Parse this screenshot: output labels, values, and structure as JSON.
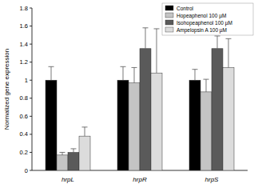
{
  "chart_data": {
    "type": "bar",
    "y_label": "Normalized gene expression",
    "categories": [
      "hrpL",
      "hrpR",
      "hrpS"
    ],
    "series": [
      {
        "name": "Control",
        "color": "#000000",
        "values": [
          1.0,
          1.0,
          1.0
        ],
        "errors": [
          0.15,
          0.15,
          0.12
        ]
      },
      {
        "name": "Hopeaphenol 100 µM",
        "color": "#c4c4c4",
        "values": [
          0.17,
          0.97,
          0.87
        ],
        "errors": [
          0.03,
          0.17,
          0.14
        ]
      },
      {
        "name": "Isohopeaphenol 100 µM",
        "color": "#5a5a5a",
        "values": [
          0.2,
          1.35,
          1.35
        ],
        "errors": [
          0.04,
          0.23,
          0.14
        ]
      },
      {
        "name": "Ampelopsin A 100 µM",
        "color": "#dcdcdc",
        "values": [
          0.38,
          1.08,
          1.14
        ],
        "errors": [
          0.1,
          0.49,
          0.32
        ]
      }
    ],
    "ylim": [
      0,
      1.8
    ],
    "yticks": [
      0,
      0.2,
      0.4,
      0.6,
      0.8,
      1,
      1.2,
      1.4,
      1.6,
      1.8
    ],
    "legend": "upper right",
    "grid": false
  }
}
